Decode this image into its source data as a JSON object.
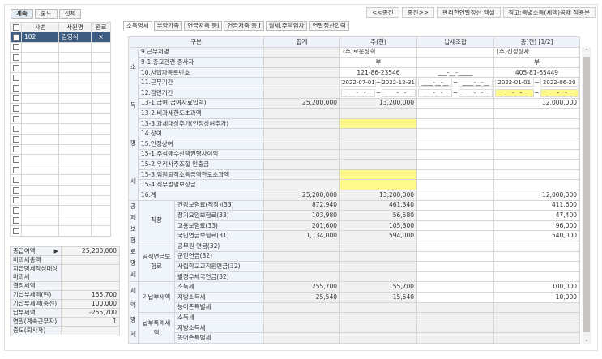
{
  "left_tabs": [
    "계속",
    "중도",
    "전체"
  ],
  "employee_table": {
    "headers": [
      "사번",
      "사원명",
      "완료"
    ],
    "rows": [
      {
        "id": "102",
        "name": "김영식",
        "done": "×"
      }
    ],
    "empty_rows": 19
  },
  "summary": [
    {
      "label": "총급여액",
      "value": "25,200,000",
      "button": "▶"
    },
    {
      "label": "비과세총액",
      "value": ""
    },
    {
      "label": "지급명세작성대상비과세",
      "value": ""
    },
    {
      "label": "결정세액",
      "value": ""
    },
    {
      "label": "기납부세액(현)",
      "value": "155,700"
    },
    {
      "label": "기납부세액(종전)",
      "value": "100,000"
    },
    {
      "label": "납부세액",
      "value": "-255,700"
    },
    {
      "label": "연말(계속근무자)",
      "value": "1"
    },
    {
      "label": "중도(퇴사자)",
      "value": ""
    }
  ],
  "top_buttons": [
    "<<종전",
    "종전>>",
    "편리한연말정산 엑셀",
    "참고:특별소득(세액)공제 적용분"
  ],
  "tabs": [
    "소득명세",
    "부양가족",
    "연금저축 등I",
    "연금저축 등II",
    "월세,주택임차",
    "연말정산입력"
  ],
  "active_tab": 0,
  "main_table": {
    "headers": [
      "구분",
      "합계",
      "주(현)",
      "납세조합",
      "종(전) [1/2]"
    ],
    "groups": [
      {
        "label": "소득명세",
        "start": 0,
        "span": 15
      },
      {
        "label": "공제보험료명세",
        "start": 15,
        "span": 8
      },
      {
        "label": "세액명세",
        "start": 23,
        "span": 6
      }
    ],
    "subgroups": [
      {
        "label": "직장",
        "start": 15,
        "span": 4
      },
      {
        "label": "공적연금보험료",
        "start": 19,
        "span": 4
      },
      {
        "label": "기납부세액",
        "start": 23,
        "span": 3
      },
      {
        "label": "납부특례세액",
        "start": 26,
        "span": 3
      }
    ],
    "rows": [
      {
        "label": "9.근무처명",
        "sum": "",
        "cur": "(주)로운상회",
        "union": "",
        "prev": "(주)진성상사",
        "align": "left"
      },
      {
        "label": "9-1.종교관련 종사자",
        "sum": "",
        "cur": "부",
        "union": "",
        "prev": "부",
        "align": "center"
      },
      {
        "label": "10.사업자등록번호",
        "sum": "",
        "cur": "121-86-23546",
        "union": "___-__-_____",
        "prev": "405-81-65449",
        "align": "center"
      },
      {
        "label": "11.근무기간",
        "sum": "",
        "cur": [
          "2022-07-01",
          "2022-12-31"
        ],
        "union": [
          "____-__-__",
          "____-__-__"
        ],
        "prev": [
          "2022-01-01",
          "2022-06-20"
        ]
      },
      {
        "label": "12.감면기간",
        "sum": "",
        "cur": [
          "____-__-__",
          "____-__-__"
        ],
        "union": [
          "____-__-__",
          "____-__-__"
        ],
        "prev": [
          "____-__-__",
          "____-__-__"
        ],
        "prev_highlight": true
      },
      {
        "label": "13-1.급여(급여자료입력)",
        "sum": "25,200,000",
        "cur": "13,200,000",
        "union": "",
        "prev": "12,000,000"
      },
      {
        "label": "13-2.비과세한도초과액",
        "sum": "",
        "cur": "",
        "union": "",
        "prev": ""
      },
      {
        "label": "13-3.과세대상추가(인정상여추가)",
        "sum": "",
        "cur": "",
        "union": "",
        "prev": "",
        "cur_highlight": true
      },
      {
        "label": "14.상여",
        "sum": "",
        "cur": "",
        "union": "",
        "prev": ""
      },
      {
        "label": "15.인정상여",
        "sum": "",
        "cur": "",
        "union": "",
        "prev": ""
      },
      {
        "label": "15-1.주식매수선택권행사이익",
        "sum": "",
        "cur": "",
        "union": "",
        "prev": ""
      },
      {
        "label": "15-2.우리사주조합 인출금",
        "sum": "",
        "cur": "",
        "union": "",
        "prev": ""
      },
      {
        "label": "15-3.임원퇴직소득금액한도초과액",
        "sum": "",
        "cur": "",
        "union": "",
        "prev": "",
        "cur_highlight": true
      },
      {
        "label": "15-4.직무발명보상금",
        "sum": "",
        "cur": "",
        "union": "",
        "prev": "",
        "cur_highlight": true
      },
      {
        "label": "16.계",
        "sum": "25,200,000",
        "cur": "13,200,000",
        "union": "",
        "prev": "12,000,000"
      },
      {
        "label": "건강보험료(직장)(33)",
        "sum": "872,940",
        "cur": "461,340",
        "union": "",
        "prev": "411,600"
      },
      {
        "label": "장기요양보험료(33)",
        "sum": "103,980",
        "cur": "56,580",
        "union": "",
        "prev": "47,400"
      },
      {
        "label": "고용보험료(33)",
        "sum": "201,600",
        "cur": "105,600",
        "union": "",
        "prev": "96,000"
      },
      {
        "label": "국민연금보험료(31)",
        "sum": "1,134,000",
        "cur": "594,000",
        "union": "",
        "prev": "540,000"
      },
      {
        "label": "공무원 연금(32)",
        "sum": "",
        "cur": "",
        "union": "",
        "prev": ""
      },
      {
        "label": "군인연금(32)",
        "sum": "",
        "cur": "",
        "union": "",
        "prev": ""
      },
      {
        "label": "사립학교교직원연금(32)",
        "sum": "",
        "cur": "",
        "union": "",
        "prev": ""
      },
      {
        "label": "별정우체국연금(32)",
        "sum": "",
        "cur": "",
        "union": "",
        "prev": ""
      },
      {
        "label": "소득세",
        "sum": "255,700",
        "cur": "155,700",
        "union": "",
        "prev": "100,000"
      },
      {
        "label": "지방소득세",
        "sum": "25,540",
        "cur": "15,540",
        "union": "",
        "prev": "10,000"
      },
      {
        "label": "농어촌특별세",
        "sum": "",
        "cur": "",
        "union": "",
        "prev": ""
      },
      {
        "label": "소득세",
        "sum": "",
        "cur": "",
        "union": "",
        "prev": ""
      },
      {
        "label": "지방소득세",
        "sum": "",
        "cur": "",
        "union": "",
        "prev": ""
      },
      {
        "label": "농어촌특별세",
        "sum": "",
        "cur": "",
        "union": "",
        "prev": ""
      }
    ]
  },
  "colors": {
    "selected_row": "#3e5c82",
    "highlight": "#fff88a",
    "header_bg": "#eef3f9"
  }
}
